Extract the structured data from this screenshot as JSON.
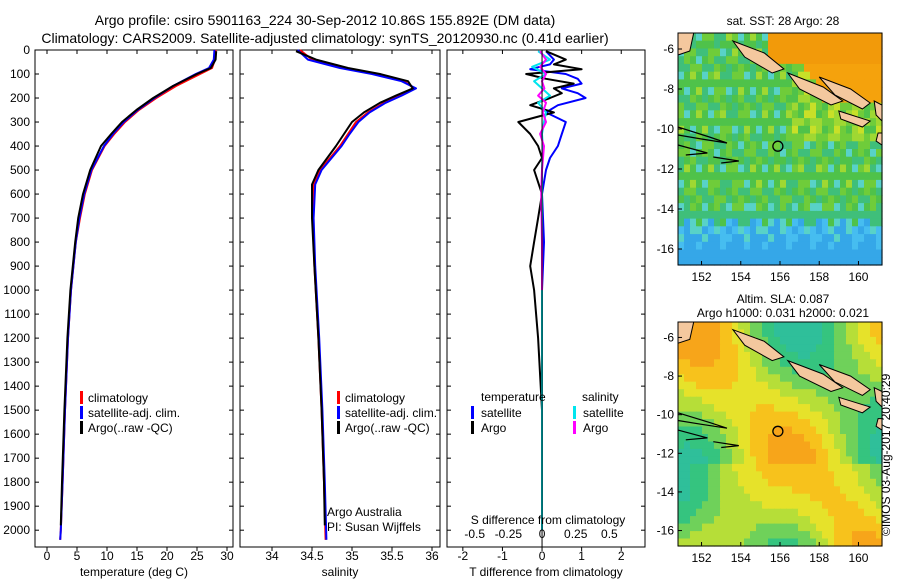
{
  "header": {
    "line1": "Argo profile: csiro 5901163_224 30-Sep-2012 10.86S 155.892E (DM data)",
    "line2": "Climatology: CARS2009. Satellite-adjusted climatology: synTS_20120930.nc (0.41d earlier)"
  },
  "colors": {
    "climatology": "#ff0000",
    "satellite": "#0000ff",
    "argo": "#000000",
    "sat_salinity": "#00e5ee",
    "argo_salinity": "#ff00ff"
  },
  "chart_data": [
    {
      "type": "line",
      "id": "temperature",
      "xlabel": "temperature (deg C)",
      "ylabel": "",
      "xlim": [
        -2,
        31
      ],
      "ylim": [
        2070,
        0
      ],
      "xticks": [
        0,
        5,
        10,
        15,
        20,
        25,
        30
      ],
      "yticks": [
        0,
        100,
        200,
        300,
        400,
        500,
        600,
        700,
        800,
        900,
        1000,
        1100,
        1200,
        1300,
        1400,
        1500,
        1600,
        1700,
        1800,
        1900,
        2000
      ],
      "legend": {
        "position": "lower-center",
        "entries": [
          "climatology",
          "satellite-adj. clim.",
          "Argo(..raw -QC)"
        ]
      },
      "series": [
        {
          "name": "climatology",
          "color": "#ff0000",
          "depth": [
            0,
            40,
            75,
            100,
            150,
            200,
            250,
            300,
            350,
            400,
            500,
            600,
            700,
            800,
            1000,
            1200,
            1500,
            1800,
            2000,
            2040
          ],
          "values": [
            28.1,
            28.0,
            27.5,
            25.5,
            21.5,
            18.2,
            15.3,
            13.0,
            11.2,
            9.6,
            7.5,
            6.3,
            5.5,
            4.8,
            4.0,
            3.5,
            3.0,
            2.6,
            2.3,
            2.2
          ]
        },
        {
          "name": "satellite-adj. clim.",
          "color": "#0000ff",
          "depth": [
            0,
            40,
            75,
            100,
            150,
            200,
            250,
            300,
            350,
            400,
            500,
            600,
            700,
            800,
            1000,
            1200,
            1500,
            1800,
            2000,
            2040
          ],
          "values": [
            27.9,
            27.8,
            27.0,
            24.8,
            21.0,
            17.9,
            15.1,
            12.8,
            11.0,
            9.5,
            7.4,
            6.2,
            5.4,
            4.8,
            4.0,
            3.5,
            3.0,
            2.6,
            2.3,
            2.2
          ]
        },
        {
          "name": "Argo(..raw -QC)",
          "color": "#000000",
          "depth": [
            5,
            40,
            75,
            100,
            150,
            200,
            250,
            300,
            350,
            400,
            500,
            600,
            700,
            800,
            1000,
            1200,
            1500,
            1800,
            1980
          ],
          "values": [
            28.2,
            28.1,
            27.3,
            25.0,
            21.0,
            17.7,
            14.9,
            12.5,
            10.7,
            9.0,
            7.2,
            6.0,
            5.2,
            4.7,
            3.9,
            3.4,
            2.9,
            2.5,
            2.3
          ]
        }
      ]
    },
    {
      "type": "line",
      "id": "salinity",
      "xlabel": "salinity",
      "ylabel": "",
      "xlim": [
        33.6,
        36.1
      ],
      "ylim": [
        2070,
        0
      ],
      "xticks": [
        34,
        34.5,
        35,
        35.5,
        36
      ],
      "legend": {
        "position": "lower-center",
        "entries": [
          "climatology",
          "satellite-adj. clim.",
          "Argo(..raw -QC)"
        ]
      },
      "annotation": [
        "Argo Australia",
        "PI: Susan Wijffels"
      ],
      "series": [
        {
          "name": "climatology",
          "color": "#ff0000",
          "depth": [
            0,
            40,
            75,
            100,
            130,
            160,
            190,
            220,
            260,
            300,
            350,
            400,
            500,
            560,
            700,
            900,
            1200,
            1500,
            1800,
            2040
          ],
          "values": [
            34.35,
            34.5,
            34.9,
            35.3,
            35.65,
            35.78,
            35.6,
            35.4,
            35.2,
            35.05,
            34.95,
            34.85,
            34.6,
            34.52,
            34.51,
            34.53,
            34.58,
            34.62,
            34.65,
            34.67
          ]
        },
        {
          "name": "satellite-adj. clim.",
          "color": "#0000ff",
          "depth": [
            0,
            40,
            75,
            100,
            130,
            160,
            190,
            220,
            260,
            300,
            350,
            400,
            500,
            560,
            700,
            900,
            1200,
            1500,
            1800,
            2040
          ],
          "values": [
            34.32,
            34.45,
            34.85,
            35.25,
            35.62,
            35.8,
            35.62,
            35.42,
            35.22,
            35.08,
            34.97,
            34.87,
            34.62,
            34.54,
            34.52,
            34.54,
            34.59,
            34.63,
            34.66,
            34.68
          ]
        },
        {
          "name": "Argo(..raw -QC)",
          "color": "#000000",
          "depth": [
            5,
            40,
            75,
            100,
            130,
            160,
            190,
            220,
            260,
            300,
            350,
            400,
            500,
            560,
            700,
            900,
            1200,
            1500,
            1800,
            1980
          ],
          "values": [
            34.3,
            34.55,
            34.95,
            35.35,
            35.7,
            35.76,
            35.55,
            35.35,
            35.15,
            35.0,
            34.9,
            34.8,
            34.58,
            34.5,
            34.5,
            34.53,
            34.58,
            34.62,
            34.65,
            34.66
          ]
        }
      ]
    },
    {
      "type": "line",
      "id": "differences",
      "xlabel": "T difference from climatology",
      "xlabel_top": "S difference from climatology",
      "xlim": [
        -2.4,
        2.6
      ],
      "ylim": [
        2070,
        0
      ],
      "xticks": [
        -2,
        -1,
        0,
        1,
        2
      ],
      "xticks_salinity": [
        -0.5,
        -0.25,
        0,
        0.25,
        0.5
      ],
      "xticks_salinity_labels": [
        "-0.5",
        "-0.25",
        "0",
        "0.25",
        "0.5"
      ],
      "legend": {
        "position": "lower-center",
        "headers": [
          "temperature",
          "salinity"
        ],
        "entries": [
          "satellite",
          "Argo",
          "satellite",
          "Argo"
        ]
      },
      "series": [
        {
          "name": "temperature satellite",
          "color": "#0000ff",
          "depth": [
            5,
            40,
            60,
            80,
            100,
            120,
            140,
            160,
            180,
            200,
            230,
            260,
            300,
            350,
            400,
            450,
            500,
            600,
            800,
            1000,
            1500,
            2000
          ],
          "values": [
            0.1,
            0.3,
            0.2,
            -0.3,
            0.6,
            0.9,
            1.0,
            0.5,
            0.9,
            1.1,
            0.4,
            0.1,
            0.6,
            0.5,
            0.4,
            0.2,
            0.1,
            0.0,
            0.05,
            0.0,
            0.0,
            0.0
          ]
        },
        {
          "name": "temperature Argo",
          "color": "#000000",
          "depth": [
            5,
            40,
            60,
            80,
            100,
            120,
            140,
            160,
            180,
            200,
            230,
            260,
            300,
            350,
            400,
            450,
            500,
            600,
            700,
            800,
            900,
            1000,
            1200,
            1500,
            1800,
            1980
          ],
          "values": [
            0.1,
            0.6,
            0.3,
            1.0,
            -0.4,
            0.1,
            0.8,
            0.3,
            0.5,
            0.2,
            -0.3,
            0.3,
            -0.6,
            -0.3,
            -0.1,
            0.0,
            -0.2,
            0.0,
            -0.1,
            -0.2,
            -0.3,
            -0.2,
            -0.1,
            0.0,
            0.0,
            0.0
          ]
        },
        {
          "name": "salinity satellite",
          "color": "#00e5ee",
          "depth": [
            5,
            40,
            70,
            100,
            130,
            160,
            190,
            220,
            260,
            300,
            350,
            400,
            500,
            600,
            800,
            1000,
            1500,
            2000
          ],
          "values": [
            -0.1,
            0.2,
            -0.25,
            0.1,
            -0.2,
            0.0,
            0.2,
            -0.1,
            0.1,
            0.05,
            0.0,
            0.02,
            0.0,
            0.0,
            0.0,
            0.0,
            0.0,
            0.0
          ]
        },
        {
          "name": "salinity Argo",
          "color": "#ff00ff",
          "depth": [
            5,
            40,
            70,
            100,
            130,
            160,
            190,
            220,
            260,
            300,
            350,
            400,
            500,
            600,
            800,
            1000
          ],
          "values": [
            -0.05,
            0.1,
            -0.05,
            0.1,
            0.0,
            0.06,
            -0.1,
            0.1,
            0.02,
            0.1,
            -0.05,
            0.05,
            0.0,
            -0.02,
            0.0,
            0.0
          ]
        }
      ]
    },
    {
      "type": "heatmap",
      "id": "sst-map",
      "title": "sat. SST: 28 Argo: 28",
      "xticks": [
        152,
        154,
        156,
        158,
        160
      ],
      "yticks": [
        -6,
        -8,
        -10,
        -12,
        -14,
        -16
      ],
      "xlim": [
        150.8,
        161.2
      ],
      "ylim": [
        -16.8,
        -5.2
      ],
      "argo_position": {
        "lon": 155.892,
        "lat": -10.86
      }
    },
    {
      "type": "heatmap",
      "id": "sla-map",
      "title": "Altim. SLA: 0.087",
      "subtitle": "Argo h1000: 0.031 h2000: 0.021",
      "xticks": [
        152,
        154,
        156,
        158,
        160
      ],
      "yticks": [
        -6,
        -8,
        -10,
        -12,
        -14,
        -16
      ],
      "xlim": [
        150.8,
        161.2
      ],
      "ylim": [
        -16.8,
        -5.2
      ],
      "argo_position": {
        "lon": 155.892,
        "lat": -10.86
      }
    }
  ],
  "stamp": "©IMOS 03-Aug-2017 20:40:29"
}
